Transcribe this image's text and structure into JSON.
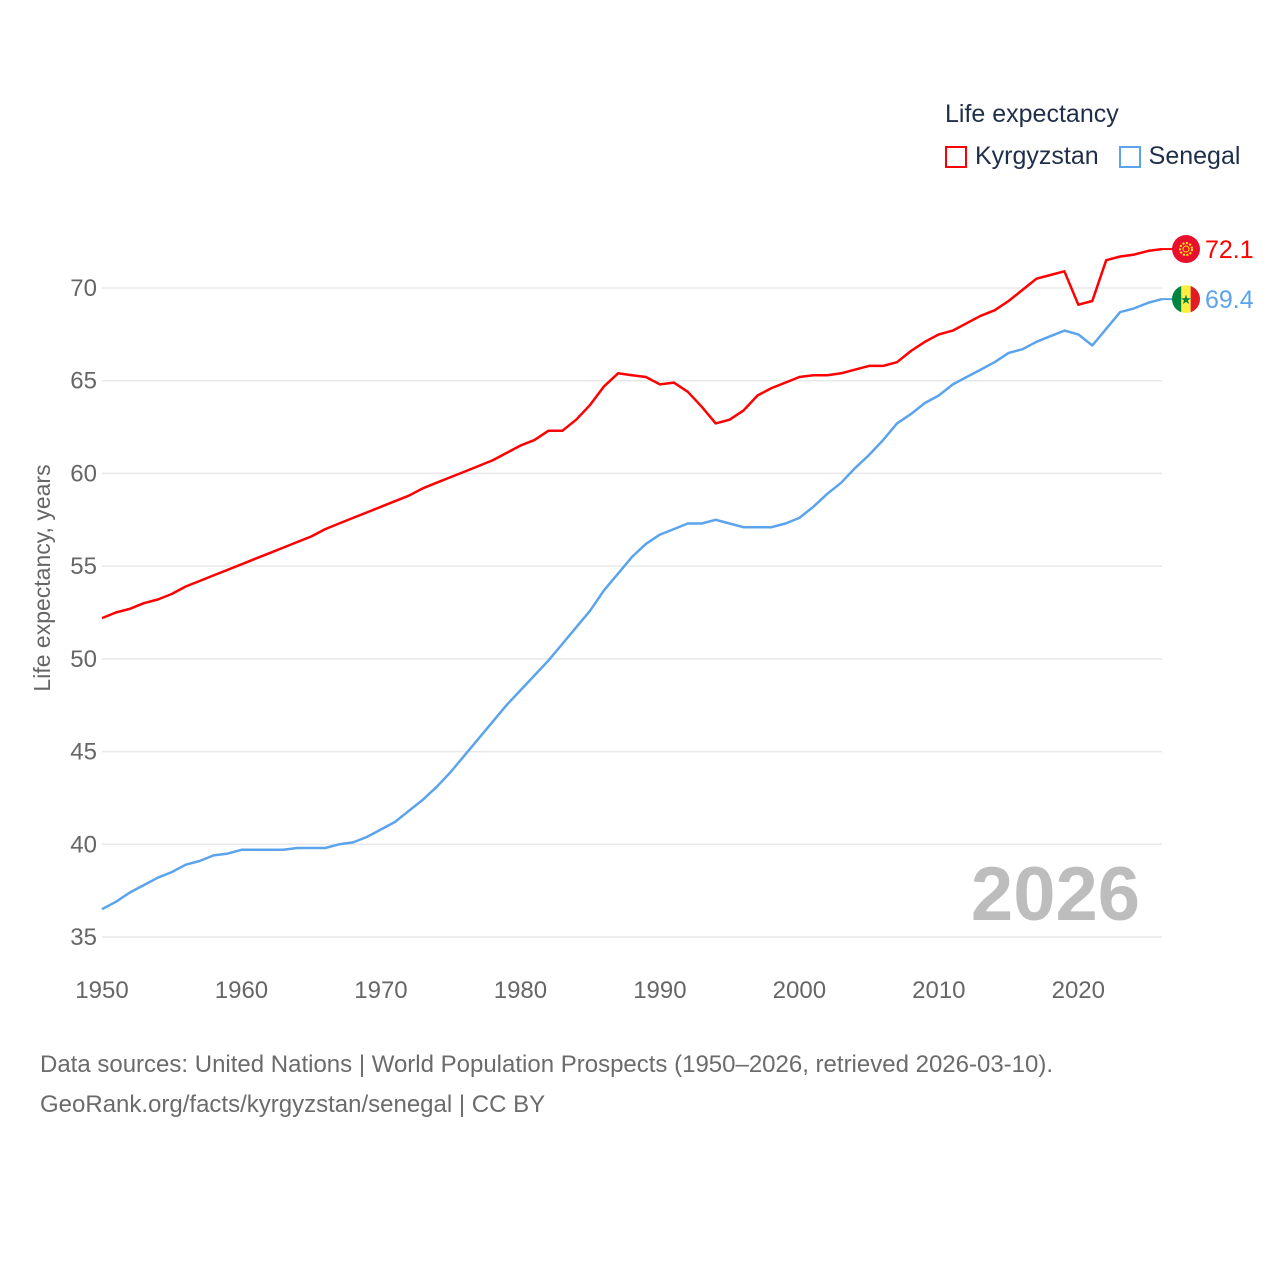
{
  "chart_data": {
    "type": "line",
    "title": "Life expectancy",
    "xlabel": "",
    "ylabel": "Life expectancy, years",
    "xlim": [
      1950,
      2026
    ],
    "ylim": [
      35,
      72.5
    ],
    "xticks": [
      1950,
      1960,
      1970,
      1980,
      1990,
      2000,
      2010,
      2020
    ],
    "yticks": [
      35,
      40,
      45,
      50,
      55,
      60,
      65,
      70
    ],
    "grid": true,
    "legend_position": "top-right",
    "year_label": "2026",
    "x": [
      1950,
      1951,
      1952,
      1953,
      1954,
      1955,
      1956,
      1957,
      1958,
      1959,
      1960,
      1961,
      1962,
      1963,
      1964,
      1965,
      1966,
      1967,
      1968,
      1969,
      1970,
      1971,
      1972,
      1973,
      1974,
      1975,
      1976,
      1977,
      1978,
      1979,
      1980,
      1981,
      1982,
      1983,
      1984,
      1985,
      1986,
      1987,
      1988,
      1989,
      1990,
      1991,
      1992,
      1993,
      1994,
      1995,
      1996,
      1997,
      1998,
      1999,
      2000,
      2001,
      2002,
      2003,
      2004,
      2005,
      2006,
      2007,
      2008,
      2009,
      2010,
      2011,
      2012,
      2013,
      2014,
      2015,
      2016,
      2017,
      2018,
      2019,
      2020,
      2021,
      2022,
      2023,
      2024,
      2025,
      2026
    ],
    "series": [
      {
        "name": "Kyrgyzstan",
        "color": "#ff0000",
        "end_label": "72.1",
        "values": [
          52.2,
          52.5,
          52.7,
          53.0,
          53.2,
          53.5,
          53.9,
          54.2,
          54.5,
          54.8,
          55.1,
          55.4,
          55.7,
          56.0,
          56.3,
          56.6,
          57.0,
          57.3,
          57.6,
          57.9,
          58.2,
          58.5,
          58.8,
          59.2,
          59.5,
          59.8,
          60.1,
          60.4,
          60.7,
          61.1,
          61.5,
          61.8,
          62.3,
          62.3,
          62.9,
          63.7,
          64.7,
          65.4,
          65.3,
          65.2,
          64.8,
          64.9,
          64.4,
          63.6,
          62.7,
          62.9,
          63.4,
          64.2,
          64.6,
          64.9,
          65.2,
          65.3,
          65.3,
          65.4,
          65.6,
          65.8,
          65.8,
          66.0,
          66.6,
          67.1,
          67.5,
          67.7,
          68.1,
          68.5,
          68.8,
          69.3,
          69.9,
          70.5,
          70.7,
          70.9,
          69.1,
          69.3,
          71.5,
          71.7,
          71.8,
          72.0,
          72.1
        ]
      },
      {
        "name": "Senegal",
        "color": "#5ba4ec",
        "end_label": "69.4",
        "values": [
          36.5,
          36.9,
          37.4,
          37.8,
          38.2,
          38.5,
          38.9,
          39.1,
          39.4,
          39.5,
          39.7,
          39.7,
          39.7,
          39.7,
          39.8,
          39.8,
          39.8,
          40.0,
          40.1,
          40.4,
          40.8,
          41.2,
          41.8,
          42.4,
          43.1,
          43.9,
          44.8,
          45.7,
          46.6,
          47.5,
          48.3,
          49.1,
          49.9,
          50.8,
          51.7,
          52.6,
          53.7,
          54.6,
          55.5,
          56.2,
          56.7,
          57.0,
          57.3,
          57.3,
          57.5,
          57.3,
          57.1,
          57.1,
          57.1,
          57.3,
          57.6,
          58.2,
          58.9,
          59.5,
          60.3,
          61.0,
          61.8,
          62.7,
          63.2,
          63.8,
          64.2,
          64.8,
          65.2,
          65.6,
          66.0,
          66.5,
          66.7,
          67.1,
          67.4,
          67.7,
          67.5,
          66.9,
          67.8,
          68.7,
          68.9,
          69.2,
          69.4
        ]
      }
    ]
  },
  "footer": {
    "line1": "Data sources: United Nations | World Population Prospects (1950–2026, retrieved 2026-03-10).",
    "line2": "GeoRank.org/facts/kyrgyzstan/senegal | CC BY"
  }
}
